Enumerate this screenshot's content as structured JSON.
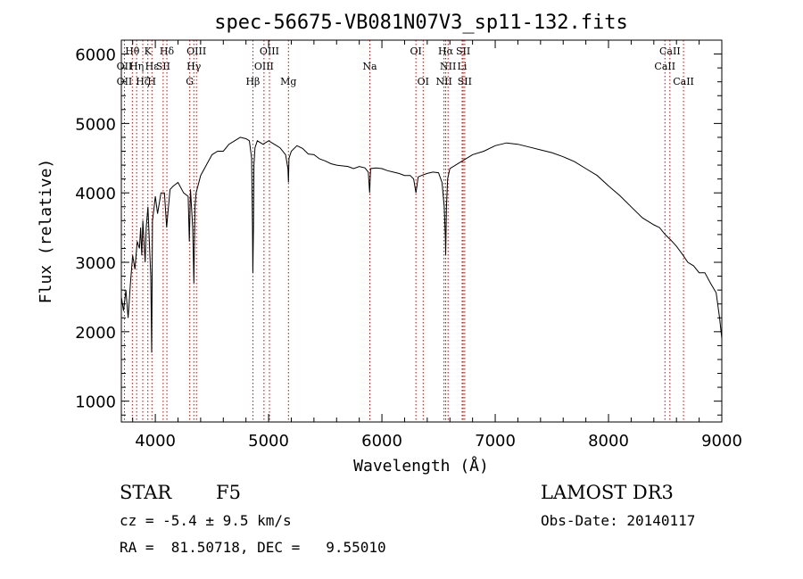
{
  "chart_data": {
    "type": "line",
    "title": "spec-56675-VB081N07V3_sp11-132.fits",
    "xlabel": "Wavelength (Å)",
    "ylabel": "Flux (relative)",
    "xlim": [
      3700,
      9000
    ],
    "ylim": [
      700,
      6200
    ],
    "x_ticks": [
      4000,
      5000,
      6000,
      7000,
      8000,
      9000
    ],
    "y_ticks": [
      1000,
      2000,
      3000,
      4000,
      5000,
      6000
    ],
    "series": [
      {
        "name": "flux",
        "x": [
          3700,
          3720,
          3740,
          3760,
          3780,
          3800,
          3820,
          3840,
          3860,
          3870,
          3880,
          3890,
          3900,
          3910,
          3920,
          3935,
          3950,
          3960,
          3968,
          3975,
          3990,
          4000,
          4020,
          4050,
          4080,
          4100,
          4110,
          4130,
          4160,
          4200,
          4250,
          4290,
          4300,
          4310,
          4330,
          4340,
          4350,
          4360,
          4400,
          4450,
          4500,
          4550,
          4600,
          4650,
          4700,
          4750,
          4800,
          4830,
          4850,
          4858,
          4861,
          4866,
          4870,
          4880,
          4900,
          4950,
          5000,
          5050,
          5100,
          5150,
          5170,
          5175,
          5180,
          5200,
          5250,
          5300,
          5350,
          5400,
          5450,
          5500,
          5550,
          5600,
          5650,
          5700,
          5750,
          5800,
          5850,
          5880,
          5892,
          5900,
          5950,
          6000,
          6050,
          6100,
          6150,
          6200,
          6250,
          6280,
          6300,
          6320,
          6350,
          6400,
          6450,
          6500,
          6530,
          6550,
          6560,
          6563,
          6570,
          6580,
          6600,
          6650,
          6700,
          6800,
          6900,
          7000,
          7100,
          7200,
          7300,
          7400,
          7500,
          7600,
          7700,
          7800,
          7900,
          8000,
          8100,
          8200,
          8300,
          8400,
          8450,
          8500,
          8550,
          8600,
          8650,
          8700,
          8750,
          8800,
          8850,
          8900,
          8950,
          8980,
          9000
        ],
        "y": [
          2500,
          2300,
          2600,
          2200,
          2700,
          3100,
          2900,
          3300,
          3200,
          3500,
          3100,
          3600,
          3300,
          3000,
          3500,
          3800,
          3200,
          2800,
          1700,
          3600,
          3800,
          3950,
          3700,
          4000,
          4000,
          3500,
          3700,
          4050,
          4100,
          4150,
          4000,
          3950,
          3300,
          4050,
          3500,
          2700,
          3800,
          4000,
          4250,
          4400,
          4550,
          4600,
          4600,
          4700,
          4750,
          4800,
          4780,
          4750,
          4500,
          3500,
          2850,
          3500,
          4400,
          4650,
          4750,
          4700,
          4750,
          4700,
          4650,
          4550,
          4350,
          4150,
          4500,
          4600,
          4680,
          4640,
          4560,
          4550,
          4490,
          4460,
          4420,
          4400,
          4390,
          4380,
          4350,
          4380,
          4360,
          4300,
          4000,
          4350,
          4360,
          4350,
          4320,
          4300,
          4280,
          4250,
          4250,
          4200,
          4000,
          4230,
          4250,
          4280,
          4300,
          4290,
          4150,
          3800,
          3350,
          3100,
          3800,
          4200,
          4350,
          4400,
          4450,
          4550,
          4600,
          4680,
          4720,
          4700,
          4660,
          4620,
          4580,
          4520,
          4450,
          4350,
          4250,
          4100,
          3960,
          3800,
          3640,
          3540,
          3500,
          3400,
          3320,
          3230,
          3120,
          3000,
          2950,
          2850,
          2850,
          2700,
          2560,
          2200,
          1900
        ]
      }
    ],
    "annotations": [
      {
        "label": "Hθ",
        "x": 3797,
        "row": 1
      },
      {
        "label": "K",
        "x": 3934,
        "row": 1
      },
      {
        "label": "Hδ",
        "x": 4102,
        "row": 1
      },
      {
        "label": "OIII",
        "x": 4363,
        "row": 1
      },
      {
        "label": "OIII",
        "x": 5007,
        "row": 1
      },
      {
        "label": "OI",
        "x": 6300,
        "row": 1
      },
      {
        "label": "Hα",
        "x": 6563,
        "row": 1
      },
      {
        "label": "SII",
        "x": 6717,
        "row": 1
      },
      {
        "label": "CaII",
        "x": 8542,
        "row": 1
      },
      {
        "label": "OII",
        "x": 3727,
        "row": 2
      },
      {
        "label": "Hη",
        "x": 3835,
        "row": 2
      },
      {
        "label": "Hε",
        "x": 3970,
        "row": 2
      },
      {
        "label": "SII",
        "x": 4069,
        "row": 2
      },
      {
        "label": "Hγ",
        "x": 4340,
        "row": 2
      },
      {
        "label": "OIII",
        "x": 4959,
        "row": 2
      },
      {
        "label": "Na",
        "x": 5893,
        "row": 2
      },
      {
        "label": "NII",
        "x": 6584,
        "row": 2
      },
      {
        "label": "Li",
        "x": 6708,
        "row": 2
      },
      {
        "label": "CaII",
        "x": 8498,
        "row": 2
      },
      {
        "label": "OII",
        "x": 3727,
        "row": 3
      },
      {
        "label": "Hζ",
        "x": 3889,
        "row": 3
      },
      {
        "label": "H",
        "x": 3969,
        "row": 3
      },
      {
        "label": "G",
        "x": 4304,
        "row": 3
      },
      {
        "label": "Hβ",
        "x": 4861,
        "row": 3
      },
      {
        "label": "Mg",
        "x": 5175,
        "row": 3
      },
      {
        "label": "OI",
        "x": 6364,
        "row": 3
      },
      {
        "label": "NII",
        "x": 6548,
        "row": 3
      },
      {
        "label": "SII",
        "x": 6731,
        "row": 3
      },
      {
        "label": "CaII",
        "x": 8662,
        "row": 3
      }
    ],
    "line_color": "#000000",
    "marker_color": "#cc0000"
  },
  "info": {
    "class": "STAR",
    "subclass": "F5",
    "survey": "LAMOST DR3",
    "redshift": "cz = -5.4 ± 9.5 km/s",
    "obs_date": "Obs-Date: 20140117",
    "coords": "RA =  81.50718, DEC =   9.55010"
  }
}
